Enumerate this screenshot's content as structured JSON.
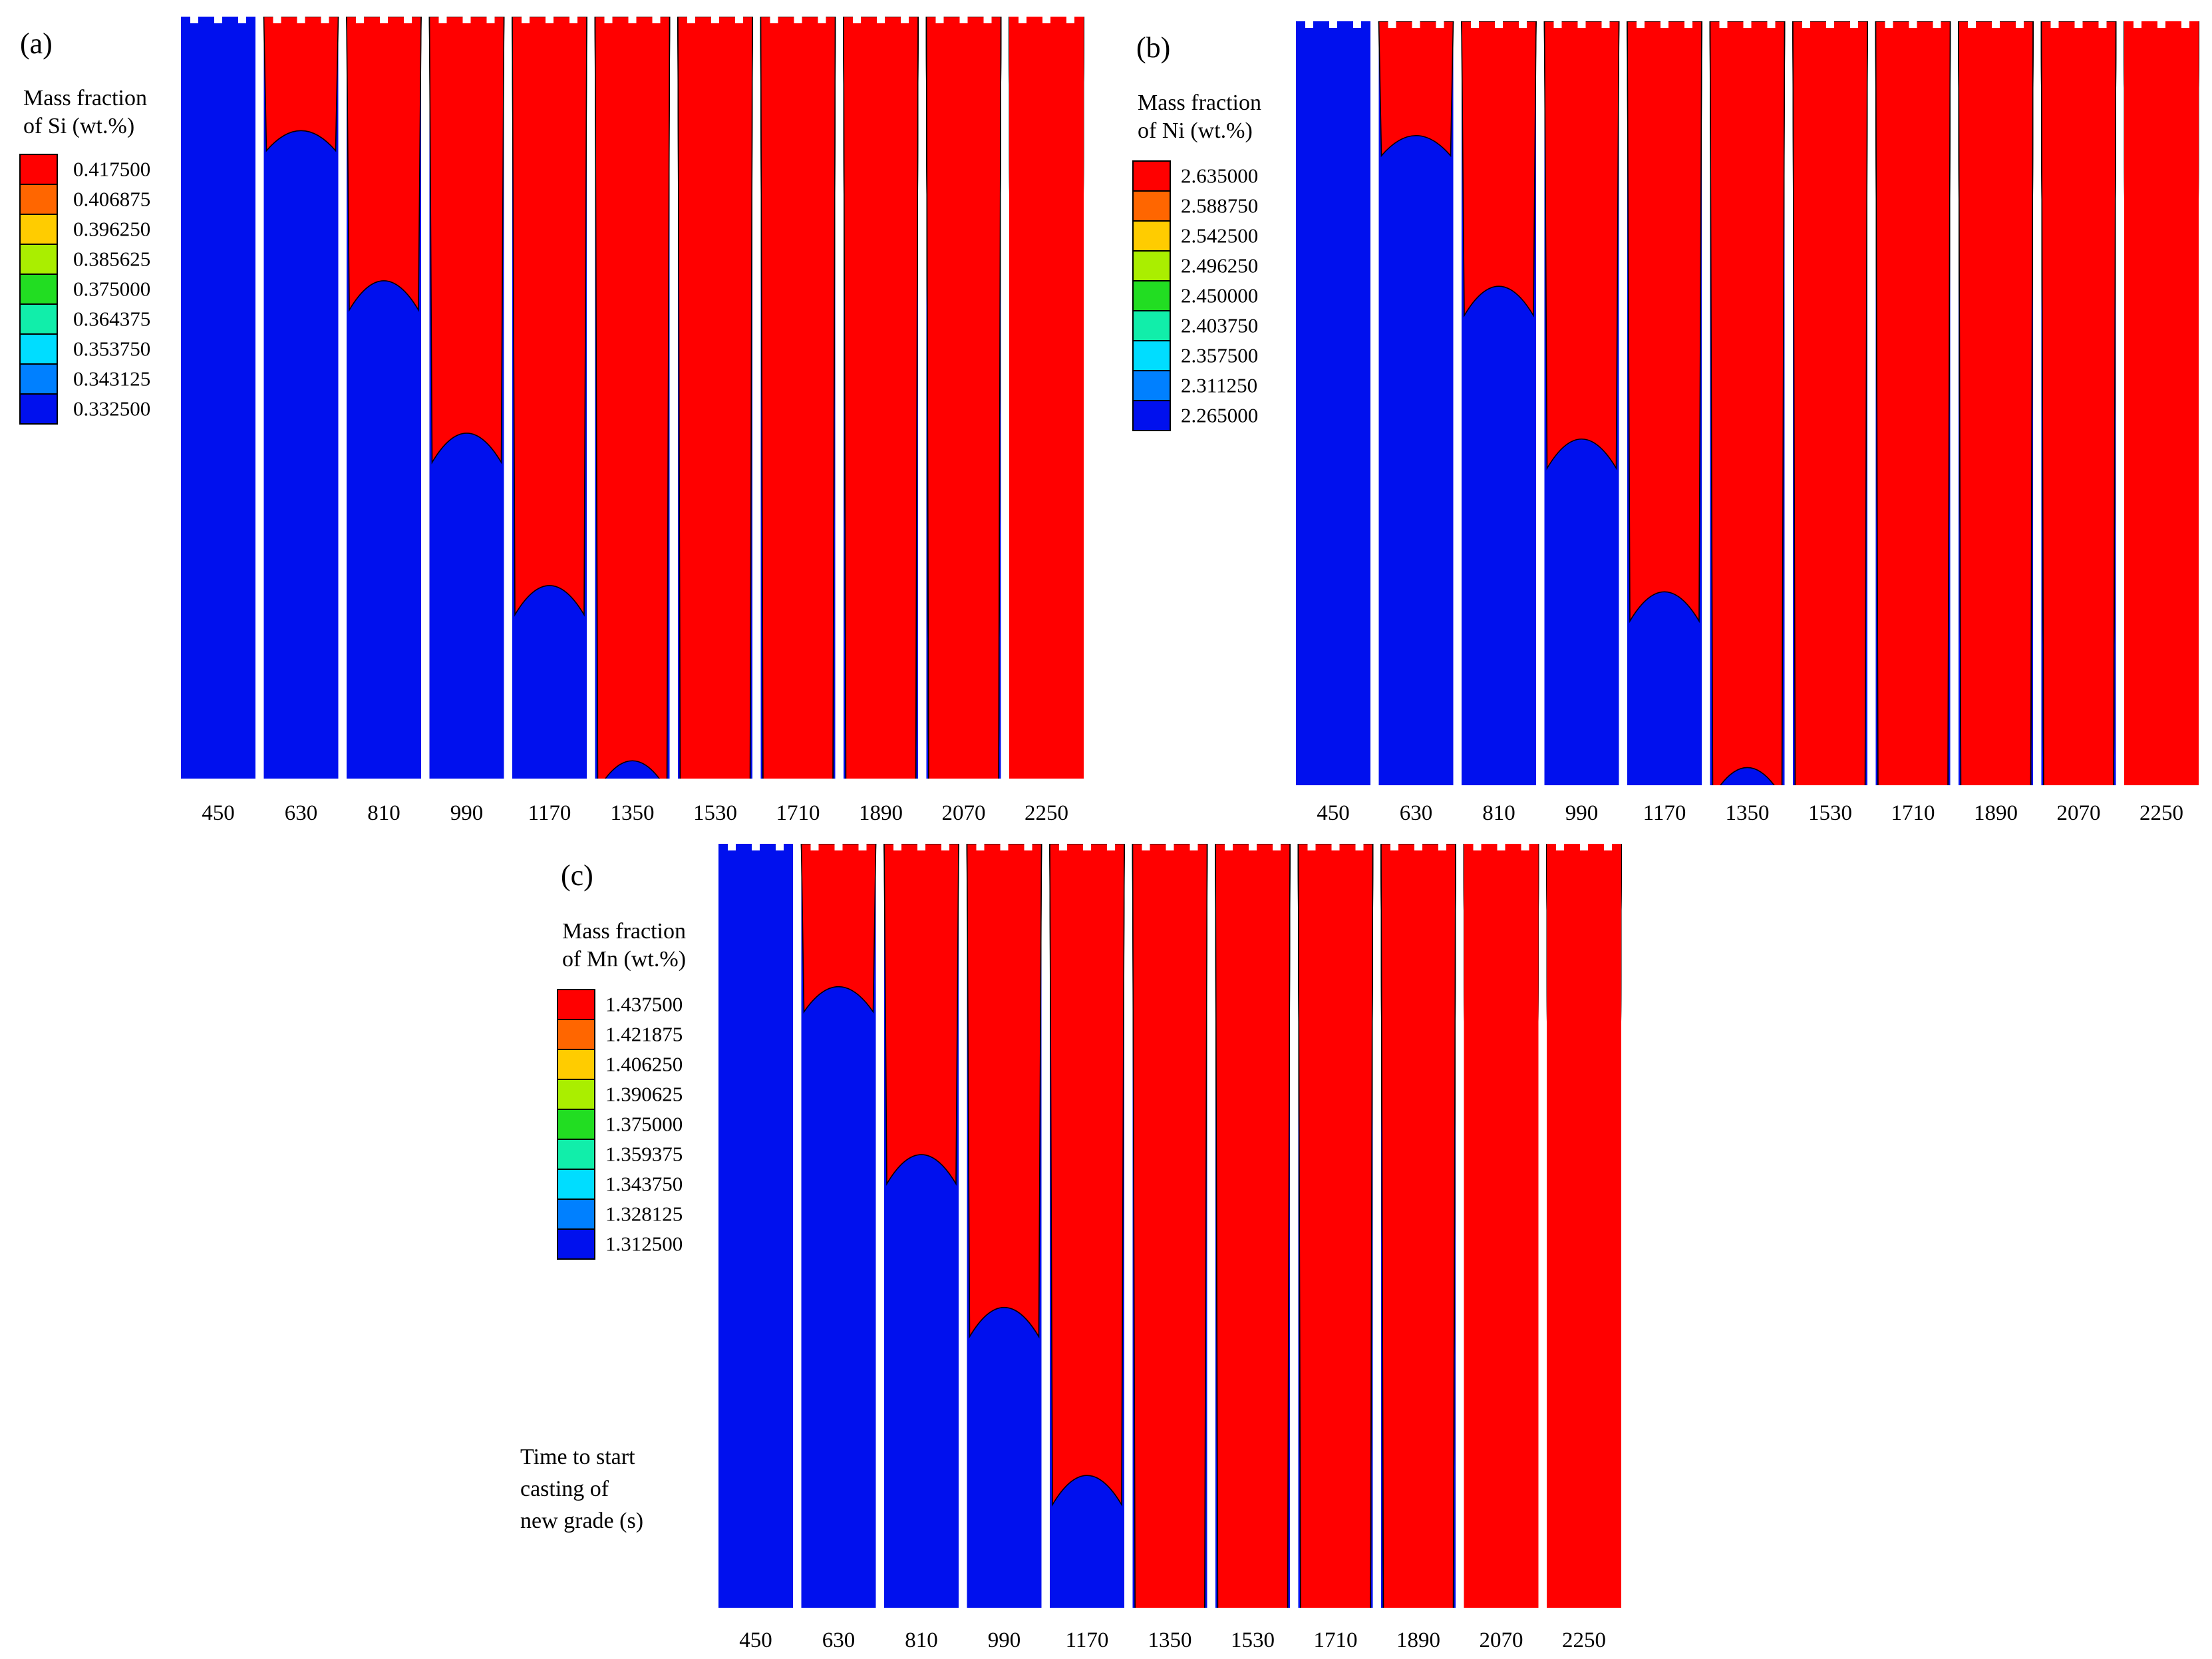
{
  "figure": {
    "panels": [
      {
        "id": "a",
        "label": "(a)",
        "legend_title": [
          "Mass fraction",
          "of Si (wt.%)"
        ],
        "levels": [
          "0.417500",
          "0.406875",
          "0.396250",
          "0.385625",
          "0.375000",
          "0.364375",
          "0.353750",
          "0.343125",
          "0.332500"
        ],
        "times": [
          "450",
          "630",
          "810",
          "990",
          "1170",
          "1350",
          "1530",
          "1710",
          "1890",
          "2070",
          "2250"
        ]
      },
      {
        "id": "b",
        "label": "(b)",
        "legend_title": [
          "Mass fraction",
          "of Ni (wt.%)"
        ],
        "levels": [
          "2.635000",
          "2.588750",
          "2.542500",
          "2.496250",
          "2.450000",
          "2.403750",
          "2.357500",
          "2.311250",
          "2.265000"
        ],
        "times": [
          "450",
          "630",
          "810",
          "990",
          "1170",
          "1350",
          "1530",
          "1710",
          "1890",
          "2070",
          "2250"
        ]
      },
      {
        "id": "c",
        "label": "(c)",
        "legend_title": [
          "Mass fraction",
          "of Mn (wt.%)"
        ],
        "levels": [
          "1.437500",
          "1.421875",
          "1.406250",
          "1.390625",
          "1.375000",
          "1.359375",
          "1.343750",
          "1.328125",
          "1.312500"
        ],
        "times": [
          "450",
          "630",
          "810",
          "990",
          "1170",
          "1350",
          "1530",
          "1710",
          "1890",
          "2070",
          "2250"
        ],
        "caption": [
          "Time to start",
          "casting of",
          "new grade (s)"
        ]
      }
    ],
    "colors": {
      "bands": [
        "#ff0000",
        "#ff6600",
        "#ffcc00",
        "#aaee00",
        "#22dd22",
        "#11eeaa",
        "#00ddff",
        "#0080ff",
        "#0010ee"
      ]
    },
    "front_depth": {
      "a": [
        0,
        0.2,
        0.42,
        0.62,
        0.82,
        1.05,
        1.25,
        1.45,
        1.68,
        1.9,
        2.2
      ],
      "b": [
        0,
        0.2,
        0.42,
        0.62,
        0.82,
        1.05,
        1.25,
        1.45,
        1.68,
        1.9,
        2.2
      ],
      "c": [
        0,
        0.25,
        0.48,
        0.68,
        0.9,
        1.12,
        1.35,
        1.58,
        1.8,
        2.05,
        2.3
      ]
    }
  }
}
